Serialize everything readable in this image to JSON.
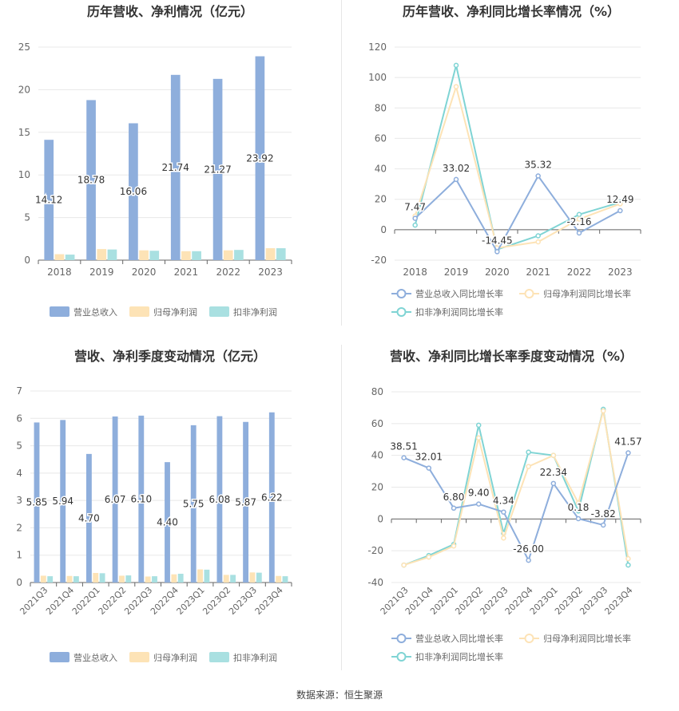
{
  "footer": "数据来源：恒生聚源",
  "colors": {
    "revenue": "#8eaedc",
    "net_profit": "#fde3b6",
    "deducted_profit": "#a9e0e1",
    "revenue_line": "#8eaedc",
    "net_profit_line": "#fde3b6",
    "deducted_line": "#7fd4d4",
    "grid": "#e8e8e8",
    "axis": "#999999",
    "text": "#666666"
  },
  "chart_data": [
    {
      "id": "annual-values",
      "type": "bar",
      "title": "历年营收、净利情况（亿元）",
      "categories": [
        "2018",
        "2019",
        "2020",
        "2021",
        "2022",
        "2023"
      ],
      "ylim": [
        0,
        25
      ],
      "yticks": [
        0,
        5,
        10,
        15,
        20,
        25
      ],
      "grid": true,
      "legend_position": "bottom",
      "series": [
        {
          "name": "营业总收入",
          "values": [
            14.12,
            18.78,
            16.06,
            21.74,
            21.27,
            23.92
          ],
          "labels": [
            "14.12",
            "18.78",
            "16.06",
            "21.74",
            "21.27",
            "23.92"
          ]
        },
        {
          "name": "归母净利润",
          "values": [
            0.7,
            1.3,
            1.15,
            1.05,
            1.15,
            1.4
          ]
        },
        {
          "name": "扣非净利润",
          "values": [
            0.65,
            1.25,
            1.1,
            1.05,
            1.2,
            1.4
          ]
        }
      ]
    },
    {
      "id": "annual-growth",
      "type": "line",
      "title": "历年营收、净利同比增长率情况（%）",
      "categories": [
        "2018",
        "2019",
        "2020",
        "2021",
        "2022",
        "2023"
      ],
      "ylim": [
        -20,
        120
      ],
      "yticks": [
        -20,
        0,
        20,
        40,
        60,
        80,
        100,
        120
      ],
      "grid": true,
      "legend_position": "bottom",
      "series": [
        {
          "name": "营业总收入同比增长率",
          "values": [
            7.47,
            33.02,
            -14.45,
            35.32,
            -2.16,
            12.49
          ],
          "labels": [
            "7.47",
            "33.02",
            "-14.45",
            "35.32",
            "-2.16",
            "12.49"
          ]
        },
        {
          "name": "归母净利润同比增长率",
          "values": [
            9,
            94,
            -12,
            -8,
            7,
            17
          ]
        },
        {
          "name": "扣非净利润同比增长率",
          "values": [
            3,
            108,
            -13,
            -4,
            10,
            18
          ]
        }
      ]
    },
    {
      "id": "quarterly-values",
      "type": "bar",
      "title": "营收、净利季度变动情况（亿元）",
      "categories": [
        "2021Q3",
        "2021Q4",
        "2022Q1",
        "2022Q2",
        "2022Q3",
        "2022Q4",
        "2023Q1",
        "2023Q2",
        "2023Q3",
        "2023Q4"
      ],
      "ylim": [
        0,
        7
      ],
      "yticks": [
        0,
        1,
        2,
        3,
        4,
        5,
        6,
        7
      ],
      "grid": true,
      "legend_position": "bottom",
      "series": [
        {
          "name": "营业总收入",
          "values": [
            5.85,
            5.94,
            4.7,
            6.07,
            6.1,
            4.4,
            5.75,
            6.08,
            5.87,
            6.22
          ],
          "labels": [
            "5.85",
            "5.94",
            "4.70",
            "6.07",
            "6.10",
            "4.40",
            "5.75",
            "6.08",
            "5.87",
            "6.22"
          ]
        },
        {
          "name": "归母净利润",
          "values": [
            0.25,
            0.24,
            0.35,
            0.25,
            0.22,
            0.3,
            0.48,
            0.28,
            0.37,
            0.24
          ]
        },
        {
          "name": "扣非净利润",
          "values": [
            0.23,
            0.23,
            0.34,
            0.26,
            0.23,
            0.32,
            0.47,
            0.28,
            0.36,
            0.23
          ]
        }
      ]
    },
    {
      "id": "quarterly-growth",
      "type": "line",
      "title": "营收、净利同比增长率季度变动情况（%）",
      "categories": [
        "2021Q3",
        "2021Q4",
        "2022Q1",
        "2022Q2",
        "2022Q3",
        "2022Q4",
        "2023Q1",
        "2023Q2",
        "2023Q3",
        "2023Q4"
      ],
      "ylim": [
        -40,
        80
      ],
      "yticks": [
        -40,
        -20,
        0,
        20,
        40,
        60,
        80
      ],
      "grid": true,
      "legend_position": "bottom",
      "series": [
        {
          "name": "营业总收入同比增长率",
          "values": [
            38.51,
            32.01,
            6.8,
            9.4,
            4.34,
            -26.0,
            22.34,
            0.18,
            -3.82,
            41.57
          ],
          "labels": [
            "38.51",
            "32.01",
            "6.80",
            "9.40",
            "4.34",
            "-26.00",
            "22.34",
            "0.18",
            "-3.82",
            "41.57"
          ]
        },
        {
          "name": "归母净利润同比增长率",
          "values": [
            -29,
            -24,
            -17,
            51,
            -12,
            33,
            40,
            10,
            68,
            -25
          ]
        },
        {
          "name": "扣非净利润同比增长率",
          "values": [
            -29,
            -23,
            -16,
            59,
            -9,
            42,
            40,
            5,
            69,
            -29
          ]
        }
      ]
    }
  ]
}
